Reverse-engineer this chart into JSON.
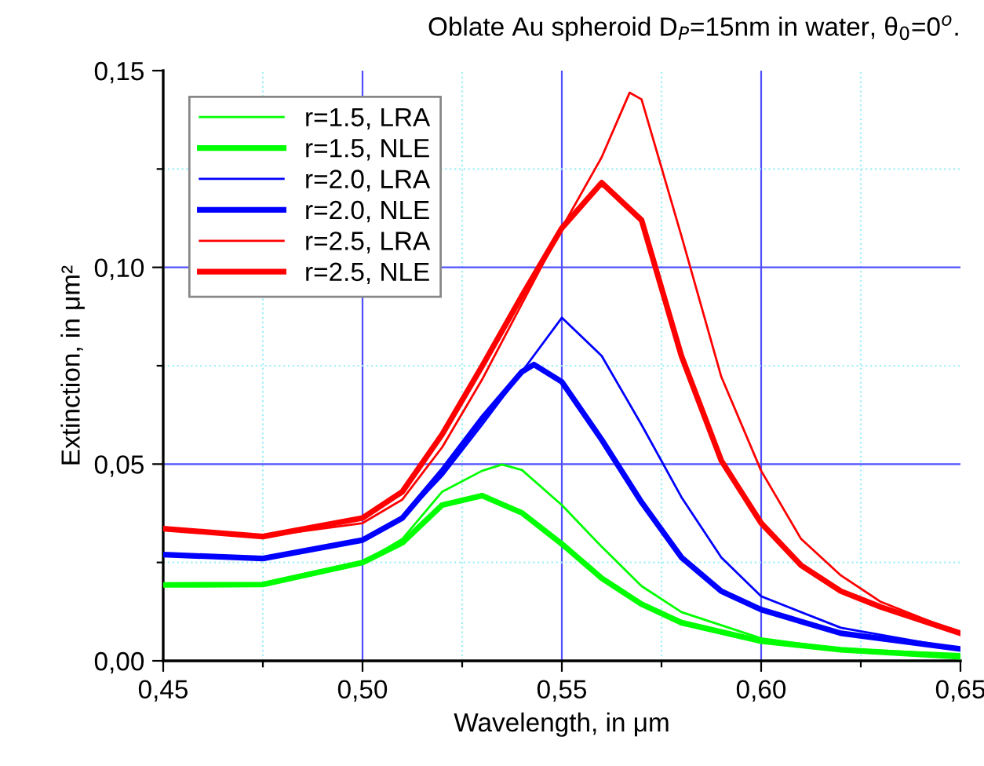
{
  "chart_data": {
    "type": "line",
    "title": "Oblate Au spheroid D$_{P}$=15nm in water, θ$_{0}$=0$^{o}$.",
    "xlabel": "Wavelength, in μm",
    "ylabel": "Extinction, in μm²",
    "xlim": [
      0.45,
      0.65
    ],
    "ylim": [
      0,
      0.15
    ],
    "xticks": [
      {
        "value": 0.45,
        "label": "0,45"
      },
      {
        "value": 0.475,
        "label": null
      },
      {
        "value": 0.5,
        "label": "0,50"
      },
      {
        "value": 0.525,
        "label": null
      },
      {
        "value": 0.55,
        "label": "0,55"
      },
      {
        "value": 0.575,
        "label": null
      },
      {
        "value": 0.6,
        "label": "0,60"
      },
      {
        "value": 0.625,
        "label": null
      },
      {
        "value": 0.65,
        "label": "0,65"
      }
    ],
    "yticks": [
      {
        "value": 0,
        "label": "0,00"
      },
      {
        "value": 0.025,
        "label": null
      },
      {
        "value": 0.05,
        "label": "0,05"
      },
      {
        "value": 0.075,
        "label": null
      },
      {
        "value": 0.1,
        "label": "0,10"
      },
      {
        "value": 0.125,
        "label": null
      },
      {
        "value": 0.15,
        "label": "0,15"
      }
    ],
    "grid": true,
    "legend": "top left",
    "marker": "none",
    "line_style": "solid",
    "series": [
      {
        "name": "r=1.5, LRA",
        "color": "#00ff00",
        "x": [
          0.45,
          0.475,
          0.5,
          0.51,
          0.52,
          0.53,
          0.535,
          0.54,
          0.55,
          0.56,
          0.57,
          0.58,
          0.6,
          0.62,
          0.65
        ],
        "values": [
          0.0193,
          0.0194,
          0.025,
          0.031,
          0.043,
          0.0483,
          0.0499,
          0.0485,
          0.0396,
          0.029,
          0.019,
          0.0124,
          0.0057,
          0.003,
          0.0017
        ]
      },
      {
        "name": "r=1.5, NLE",
        "color": "#00ff00",
        "x": [
          0.45,
          0.475,
          0.5,
          0.51,
          0.52,
          0.53,
          0.54,
          0.55,
          0.56,
          0.57,
          0.58,
          0.6,
          0.62,
          0.65
        ],
        "values": [
          0.0193,
          0.0194,
          0.025,
          0.03,
          0.0396,
          0.042,
          0.0376,
          0.0297,
          0.021,
          0.0144,
          0.0097,
          0.005,
          0.0028,
          0.001
        ]
      },
      {
        "name": "r=2.0, LRA",
        "color": "#0000ff",
        "x": [
          0.45,
          0.475,
          0.5,
          0.51,
          0.52,
          0.53,
          0.54,
          0.55,
          0.56,
          0.57,
          0.58,
          0.59,
          0.6,
          0.62,
          0.65
        ],
        "values": [
          0.027,
          0.026,
          0.0307,
          0.0363,
          0.047,
          0.06,
          0.0735,
          0.0872,
          0.0775,
          0.06,
          0.0416,
          0.0263,
          0.0164,
          0.0084,
          0.003
        ]
      },
      {
        "name": "r=2.0, NLE",
        "color": "#0000ff",
        "x": [
          0.45,
          0.475,
          0.5,
          0.51,
          0.52,
          0.53,
          0.54,
          0.543,
          0.55,
          0.56,
          0.57,
          0.58,
          0.59,
          0.6,
          0.62,
          0.65
        ],
        "values": [
          0.027,
          0.026,
          0.0307,
          0.0363,
          0.0483,
          0.0616,
          0.0735,
          0.0753,
          0.0709,
          0.0562,
          0.0403,
          0.0263,
          0.0177,
          0.013,
          0.007,
          0.003
        ]
      },
      {
        "name": "r=2.5, LRA",
        "color": "#ff0000",
        "x": [
          0.45,
          0.475,
          0.5,
          0.51,
          0.52,
          0.53,
          0.54,
          0.55,
          0.56,
          0.567,
          0.57,
          0.58,
          0.59,
          0.6,
          0.61,
          0.62,
          0.63,
          0.65
        ],
        "values": [
          0.0336,
          0.0316,
          0.035,
          0.041,
          0.0543,
          0.0715,
          0.0908,
          0.11,
          0.128,
          0.1444,
          0.1427,
          0.108,
          0.0722,
          0.0483,
          0.031,
          0.0217,
          0.015,
          0.007
        ]
      },
      {
        "name": "r=2.5, NLE",
        "color": "#ff0000",
        "x": [
          0.45,
          0.475,
          0.5,
          0.51,
          0.52,
          0.53,
          0.54,
          0.55,
          0.56,
          0.57,
          0.58,
          0.59,
          0.6,
          0.61,
          0.62,
          0.63,
          0.65
        ],
        "values": [
          0.0336,
          0.0316,
          0.0363,
          0.043,
          0.0576,
          0.0749,
          0.0928,
          0.11,
          0.1215,
          0.112,
          0.0775,
          0.0509,
          0.035,
          0.0243,
          0.0177,
          0.0137,
          0.007
        ]
      }
    ]
  }
}
